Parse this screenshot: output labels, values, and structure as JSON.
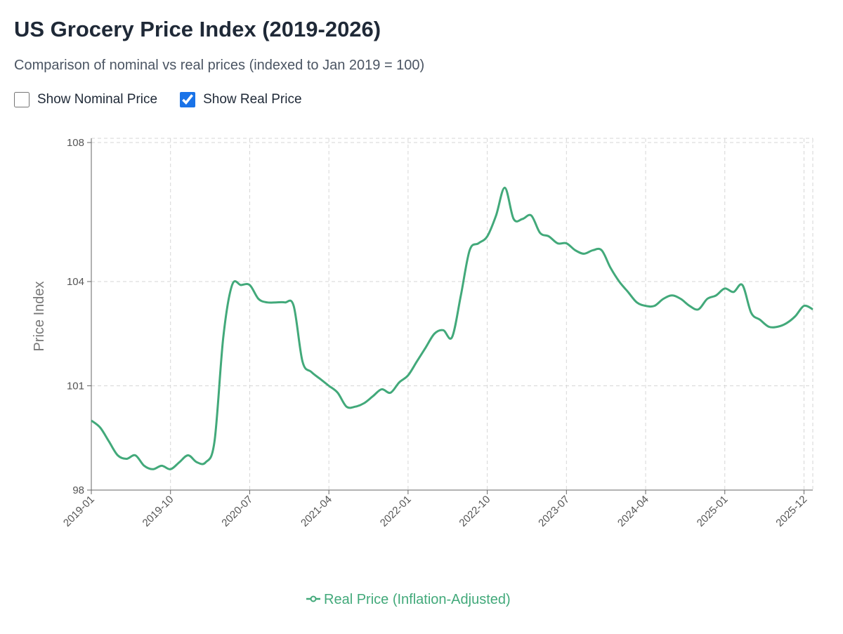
{
  "chart_data": {
    "type": "line",
    "title": "US Grocery Price Index (2019-2026)",
    "subtitle": "Comparison of nominal vs real prices (indexed to Jan 2019 = 100)",
    "y_label": "Price Index",
    "categories": [
      "2019-01",
      null,
      null,
      null,
      null,
      null,
      null,
      null,
      null,
      "2019-10",
      null,
      null,
      null,
      null,
      null,
      null,
      null,
      null,
      "2020-07",
      null,
      null,
      null,
      null,
      null,
      null,
      null,
      null,
      "2021-04",
      null,
      null,
      null,
      null,
      null,
      null,
      null,
      null,
      "2022-01",
      null,
      null,
      null,
      null,
      null,
      null,
      null,
      null,
      "2022-10",
      null,
      null,
      null,
      null,
      null,
      null,
      null,
      null,
      "2023-07",
      null,
      null,
      null,
      null,
      null,
      null,
      null,
      null,
      "2024-04",
      null,
      null,
      null,
      null,
      null,
      null,
      null,
      null,
      "2025-01",
      null,
      null,
      null,
      null,
      null,
      null,
      null,
      null,
      "2025-12",
      null
    ],
    "series": [
      {
        "name": "Real Price (Inflation-Adjusted)",
        "color": "#42a97a",
        "values": [
          100.0,
          99.8,
          99.4,
          99.0,
          98.9,
          99.0,
          98.7,
          98.6,
          98.7,
          98.6,
          98.8,
          99.0,
          98.8,
          98.8,
          99.4,
          102.4,
          103.9,
          103.9,
          103.9,
          103.5,
          103.4,
          103.4,
          103.4,
          103.3,
          101.7,
          101.4,
          101.2,
          101.0,
          100.8,
          100.4,
          100.4,
          100.5,
          100.7,
          100.9,
          100.8,
          101.1,
          101.3,
          101.7,
          102.1,
          102.5,
          102.6,
          102.4,
          103.6,
          104.9,
          105.1,
          105.3,
          105.9,
          106.7,
          105.8,
          105.8,
          105.9,
          105.4,
          105.3,
          105.1,
          105.1,
          104.9,
          104.8,
          104.9,
          104.9,
          104.4,
          104.0,
          103.7,
          103.4,
          103.3,
          103.3,
          103.5,
          103.6,
          103.5,
          103.3,
          103.2,
          103.5,
          103.6,
          103.8,
          103.7,
          103.9,
          103.1,
          102.9,
          102.7,
          102.7,
          102.8,
          103.0,
          103.3,
          103.2
        ]
      }
    ],
    "ylim": [
      98,
      108
    ],
    "yticks": [
      98,
      101,
      104,
      108
    ],
    "grid": true
  },
  "controls": [
    {
      "label": "Show Nominal Price",
      "checked": false
    },
    {
      "label": "Show Real Price",
      "checked": true
    }
  ]
}
